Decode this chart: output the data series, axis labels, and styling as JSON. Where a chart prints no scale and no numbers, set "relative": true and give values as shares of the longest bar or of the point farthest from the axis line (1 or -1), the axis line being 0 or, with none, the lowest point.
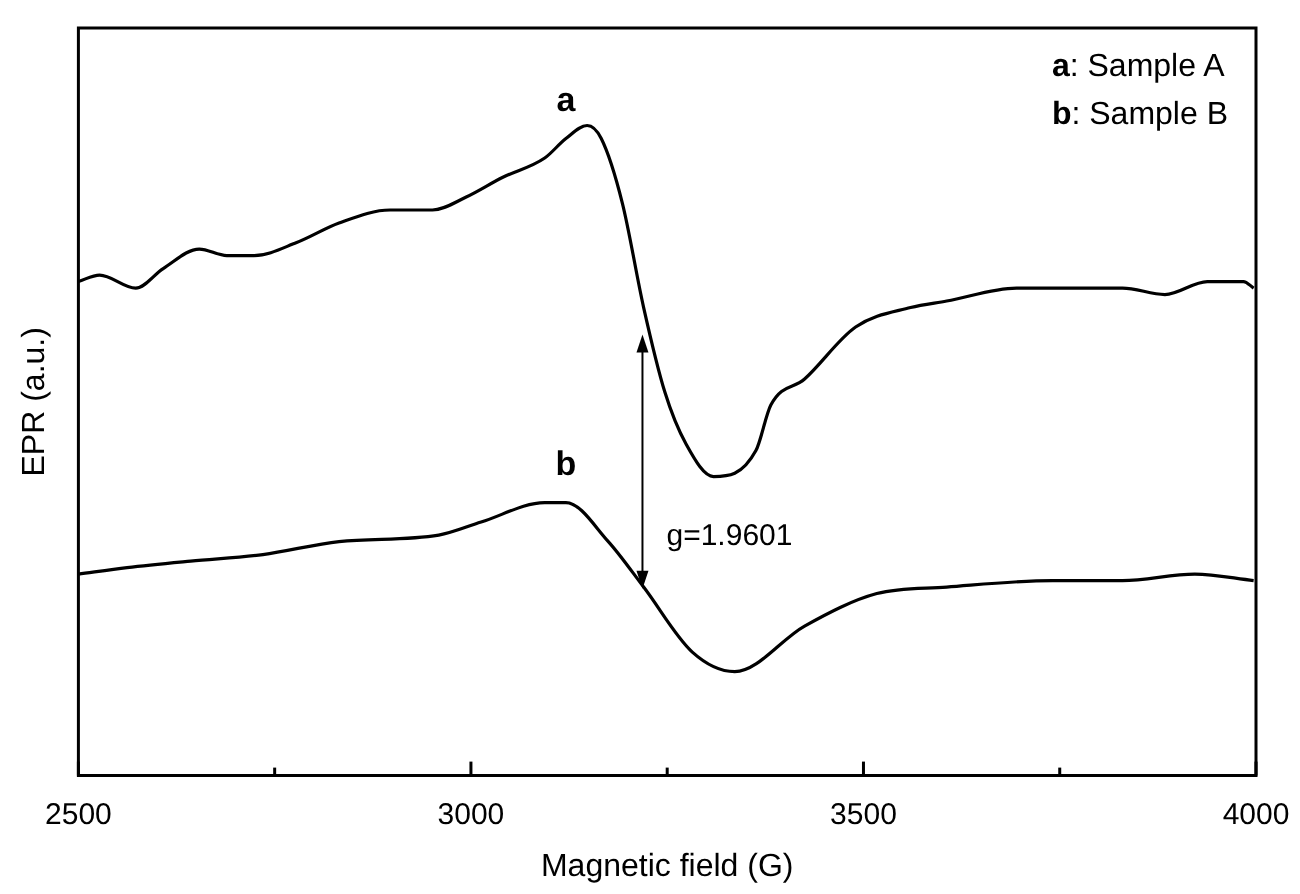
{
  "chart_data": {
    "type": "line",
    "relative": true,
    "xlabel": "Magnetic field (G)",
    "ylabel": "EPR (a.u.)",
    "xlim": [
      2500,
      4000
    ],
    "xticks": [
      2500,
      {
        "value": 2750,
        "label": null
      },
      3000,
      {
        "value": 3250,
        "label": null
      },
      3500,
      {
        "value": 3750,
        "label": null
      },
      4000
    ],
    "marker": "none",
    "legend": false,
    "series": [
      {
        "name": "a",
        "color": "#000000",
        "x": [
          2500,
          2527,
          2573,
          2608,
          2654,
          2689,
          2724,
          2778,
          2832,
          2897,
          2951,
          2994,
          3040,
          3094,
          3121,
          3148,
          3166,
          3193,
          3220,
          3247,
          3274,
          3309,
          3363,
          3382,
          3425,
          3490,
          3560,
          3606,
          3695,
          3741,
          3830,
          3884,
          3938,
          3984,
          3997
        ],
        "values": [
          0.76,
          0.77,
          0.75,
          0.78,
          0.81,
          0.8,
          0.8,
          0.82,
          0.85,
          0.87,
          0.87,
          0.89,
          0.92,
          0.95,
          0.98,
          1.0,
          0.98,
          0.88,
          0.72,
          0.59,
          0.51,
          0.46,
          0.5,
          0.57,
          0.61,
          0.69,
          0.72,
          0.73,
          0.75,
          0.75,
          0.75,
          0.74,
          0.76,
          0.76,
          0.75
        ]
      },
      {
        "name": "b",
        "color": "#000000",
        "x": [
          2500,
          2562,
          2643,
          2735,
          2832,
          2959,
          3013,
          3094,
          3121,
          3175,
          3220,
          3282,
          3336,
          3425,
          3517,
          3606,
          3741,
          3830,
          3922,
          3997
        ],
        "values": [
          0.31,
          0.32,
          0.33,
          0.34,
          0.36,
          0.37,
          0.39,
          0.42,
          0.42,
          0.36,
          0.29,
          0.19,
          0.16,
          0.23,
          0.28,
          0.29,
          0.3,
          0.3,
          0.31,
          0.3
        ]
      }
    ],
    "annotations": [
      "a: Sample A",
      "b: Sample B",
      "g=1.9601"
    ]
  }
}
